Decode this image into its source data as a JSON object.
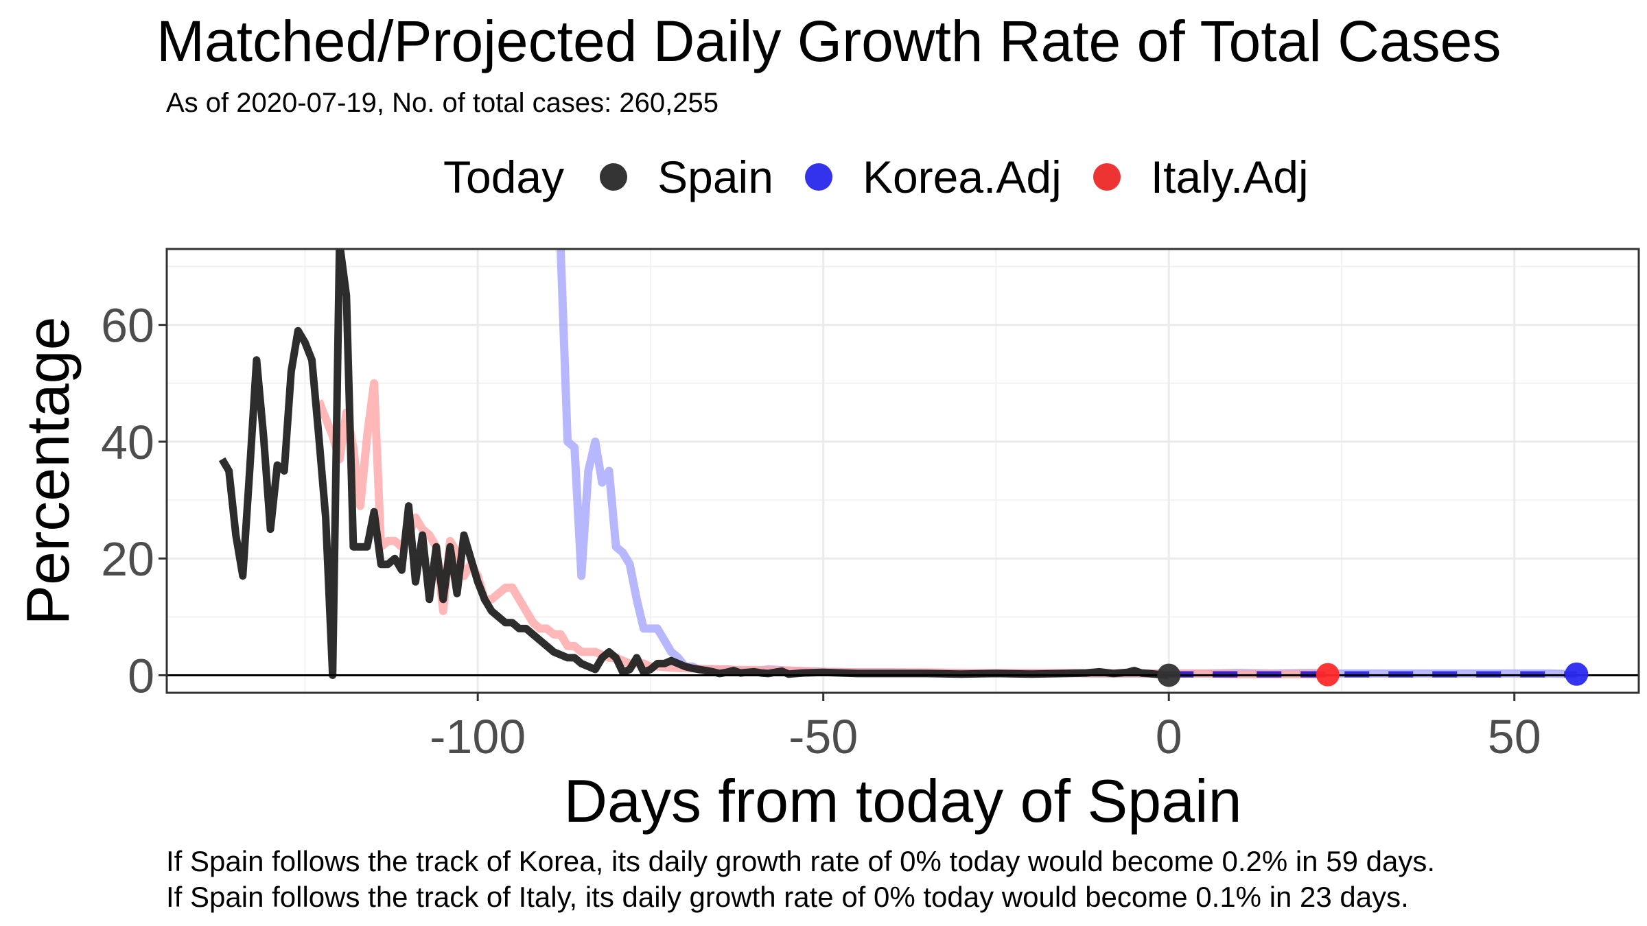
{
  "chart_data": {
    "type": "line",
    "title": "Matched/Projected Daily Growth Rate of Total Cases",
    "subtitle": "As of 2020-07-19, No. of total cases: 260,255",
    "xlabel": "Days from today of Spain",
    "ylabel": "Percentage",
    "xlim": [
      -145,
      68
    ],
    "ylim": [
      -3,
      73
    ],
    "x_ticks": [
      -100,
      -50,
      0,
      50
    ],
    "y_ticks": [
      0,
      20,
      40,
      60
    ],
    "grid": true,
    "legend": {
      "title": "Today",
      "position": "top",
      "items": [
        {
          "name": "Spain",
          "color": "#333333"
        },
        {
          "name": "Korea.Adj",
          "color": "#3333ee"
        },
        {
          "name": "Italy.Adj",
          "color": "#ee3333"
        }
      ]
    },
    "series": [
      {
        "name": "Spain",
        "color": "#222222",
        "points": [
          [
            -137,
            37
          ],
          [
            -136,
            35
          ],
          [
            -135,
            24
          ],
          [
            -134,
            17
          ],
          [
            -133,
            35
          ],
          [
            -132,
            54
          ],
          [
            -131,
            41
          ],
          [
            -130,
            25
          ],
          [
            -129,
            36
          ],
          [
            -128,
            35
          ],
          [
            -127,
            52
          ],
          [
            -126,
            59
          ],
          [
            -125,
            57
          ],
          [
            -124,
            54
          ],
          [
            -123,
            41
          ],
          [
            -122,
            27
          ],
          [
            -121,
            0
          ],
          [
            -120,
            74
          ],
          [
            -119,
            65
          ],
          [
            -118,
            22
          ],
          [
            -117,
            22
          ],
          [
            -116,
            22
          ],
          [
            -115,
            28
          ],
          [
            -114,
            19
          ],
          [
            -113,
            19
          ],
          [
            -112,
            20
          ],
          [
            -111,
            18
          ],
          [
            -110,
            29
          ],
          [
            -109,
            16
          ],
          [
            -108,
            24
          ],
          [
            -107,
            13
          ],
          [
            -106,
            22
          ],
          [
            -105,
            13
          ],
          [
            -104,
            22
          ],
          [
            -103,
            14
          ],
          [
            -102,
            24
          ],
          [
            -101,
            20
          ],
          [
            -100,
            16
          ],
          [
            -99,
            13
          ],
          [
            -98,
            11
          ],
          [
            -97,
            10
          ],
          [
            -96,
            9
          ],
          [
            -95,
            9
          ],
          [
            -94,
            8
          ],
          [
            -93,
            8
          ],
          [
            -92,
            7
          ],
          [
            -91,
            6
          ],
          [
            -90,
            5
          ],
          [
            -89,
            4
          ],
          [
            -88,
            3.5
          ],
          [
            -87,
            3
          ],
          [
            -86,
            3
          ],
          [
            -85,
            2
          ],
          [
            -84,
            1.5
          ],
          [
            -83,
            1
          ],
          [
            -82,
            3
          ],
          [
            -81,
            4
          ],
          [
            -80,
            3
          ],
          [
            -79,
            0.5
          ],
          [
            -78,
            1
          ],
          [
            -77,
            3
          ],
          [
            -76,
            0.5
          ],
          [
            -75,
            1
          ],
          [
            -74,
            2
          ],
          [
            -73,
            2
          ],
          [
            -72,
            2.5
          ],
          [
            -71,
            2
          ],
          [
            -70,
            1.5
          ],
          [
            -69,
            1.2
          ],
          [
            -68,
            1
          ],
          [
            -67,
            0.8
          ],
          [
            -66,
            0.6
          ],
          [
            -65,
            0.3
          ],
          [
            -64,
            0.5
          ],
          [
            -63,
            0.8
          ],
          [
            -62,
            0.4
          ],
          [
            -61,
            0.5
          ],
          [
            -60,
            0.6
          ],
          [
            -59,
            0.4
          ],
          [
            -58,
            0.3
          ],
          [
            -57,
            0.5
          ],
          [
            -56,
            0.7
          ],
          [
            -55,
            0.2
          ],
          [
            -53,
            0.4
          ],
          [
            -50,
            0.5
          ],
          [
            -45,
            0.3
          ],
          [
            -40,
            0.3
          ],
          [
            -35,
            0.3
          ],
          [
            -30,
            0.2
          ],
          [
            -25,
            0.3
          ],
          [
            -20,
            0.2
          ],
          [
            -15,
            0.3
          ],
          [
            -12,
            0.4
          ],
          [
            -10,
            0.6
          ],
          [
            -8,
            0.3
          ],
          [
            -6,
            0.5
          ],
          [
            -5,
            0.8
          ],
          [
            -4,
            0.4
          ],
          [
            -3,
            0.3
          ],
          [
            -2,
            0.2
          ],
          [
            -1,
            0.1
          ],
          [
            0,
            0
          ]
        ]
      },
      {
        "name": "Korea.Adj",
        "color": "#aaaaff",
        "points": [
          [
            -88,
            73
          ],
          [
            -87,
            40
          ],
          [
            -86,
            39
          ],
          [
            -85,
            17
          ],
          [
            -84,
            35
          ],
          [
            -83,
            40
          ],
          [
            -82,
            33
          ],
          [
            -81,
            35
          ],
          [
            -80,
            22
          ],
          [
            -79,
            21
          ],
          [
            -78,
            19
          ],
          [
            -77,
            13
          ],
          [
            -76,
            8
          ],
          [
            -75,
            8
          ],
          [
            -74,
            8
          ],
          [
            -73,
            6
          ],
          [
            -72,
            4
          ],
          [
            -71,
            3
          ],
          [
            -70,
            1.5
          ],
          [
            -69,
            1.5
          ],
          [
            -68,
            1
          ],
          [
            -66,
            1
          ],
          [
            -64,
            1
          ],
          [
            -62,
            0.8
          ],
          [
            -60,
            0.7
          ],
          [
            -58,
            1
          ],
          [
            -55,
            0.8
          ],
          [
            -50,
            0.6
          ],
          [
            -45,
            0.5
          ],
          [
            -40,
            0.5
          ],
          [
            -35,
            0.4
          ],
          [
            -30,
            0.4
          ],
          [
            -25,
            0.4
          ],
          [
            -20,
            0.4
          ],
          [
            -15,
            0.4
          ],
          [
            -10,
            0.3
          ],
          [
            -5,
            0.3
          ],
          [
            0,
            0.3
          ],
          [
            5,
            0.3
          ],
          [
            10,
            0.4
          ],
          [
            15,
            0.3
          ],
          [
            20,
            0.4
          ],
          [
            25,
            0.3
          ],
          [
            30,
            0.3
          ],
          [
            35,
            0.3
          ],
          [
            40,
            0.3
          ],
          [
            45,
            0.3
          ],
          [
            50,
            0.3
          ],
          [
            55,
            0.3
          ],
          [
            59,
            0.2
          ]
        ]
      },
      {
        "name": "Italy.Adj",
        "color": "#ffaaaa",
        "points": [
          [
            -123,
            47
          ],
          [
            -122,
            44
          ],
          [
            -121,
            41
          ],
          [
            -120,
            37
          ],
          [
            -119,
            45
          ],
          [
            -118,
            39
          ],
          [
            -117,
            29
          ],
          [
            -116,
            41
          ],
          [
            -115,
            50
          ],
          [
            -114,
            22
          ],
          [
            -113,
            23
          ],
          [
            -112,
            23
          ],
          [
            -111,
            22
          ],
          [
            -110,
            24
          ],
          [
            -109,
            27
          ],
          [
            -108,
            25
          ],
          [
            -107,
            24
          ],
          [
            -106,
            22
          ],
          [
            -105,
            11
          ],
          [
            -104,
            23
          ],
          [
            -103,
            21
          ],
          [
            -102,
            17
          ],
          [
            -101,
            19
          ],
          [
            -100,
            17
          ],
          [
            -99,
            13
          ],
          [
            -98,
            13
          ],
          [
            -97,
            14
          ],
          [
            -96,
            15
          ],
          [
            -95,
            15
          ],
          [
            -94,
            13
          ],
          [
            -93,
            11
          ],
          [
            -92,
            9
          ],
          [
            -91,
            8
          ],
          [
            -90,
            8
          ],
          [
            -89,
            7
          ],
          [
            -88,
            7
          ],
          [
            -87,
            5
          ],
          [
            -86,
            5
          ],
          [
            -85,
            4
          ],
          [
            -84,
            4
          ],
          [
            -83,
            4
          ],
          [
            -82,
            3.5
          ],
          [
            -81,
            3
          ],
          [
            -80,
            3
          ],
          [
            -79,
            2.5
          ],
          [
            -78,
            2
          ],
          [
            -77,
            2
          ],
          [
            -76,
            2
          ],
          [
            -75,
            1.5
          ],
          [
            -74,
            1.5
          ],
          [
            -73,
            1.4
          ],
          [
            -72,
            1.3
          ],
          [
            -70,
            1.2
          ],
          [
            -68,
            1.1
          ],
          [
            -65,
            1
          ],
          [
            -62,
            0.9
          ],
          [
            -60,
            0.9
          ],
          [
            -55,
            0.8
          ],
          [
            -50,
            0.6
          ],
          [
            -45,
            0.5
          ],
          [
            -40,
            0.5
          ],
          [
            -35,
            0.5
          ],
          [
            -30,
            0.4
          ],
          [
            -25,
            0.4
          ],
          [
            -20,
            0.4
          ],
          [
            -15,
            0.4
          ],
          [
            -10,
            0.3
          ],
          [
            -5,
            0.3
          ],
          [
            0,
            0.3
          ],
          [
            5,
            0.3
          ],
          [
            10,
            0.2
          ],
          [
            15,
            0.2
          ],
          [
            20,
            0.2
          ],
          [
            23,
            0.1
          ]
        ]
      }
    ],
    "markers": [
      {
        "name": "Spain",
        "x": 0,
        "y": 0,
        "color": "#333333"
      },
      {
        "name": "Italy.Adj",
        "x": 23,
        "y": 0.1,
        "color": "#ff2a2a"
      },
      {
        "name": "Korea.Adj",
        "x": 59,
        "y": 0.2,
        "color": "#2a2aee"
      }
    ],
    "hline": 0
  },
  "captions": {
    "korea": "If Spain follows the track of Korea, its daily growth rate of 0% today would become 0.2% in 59 days.",
    "italy": "If Spain follows the track of Italy, its daily growth rate of 0% today would become 0.1% in 23 days."
  }
}
